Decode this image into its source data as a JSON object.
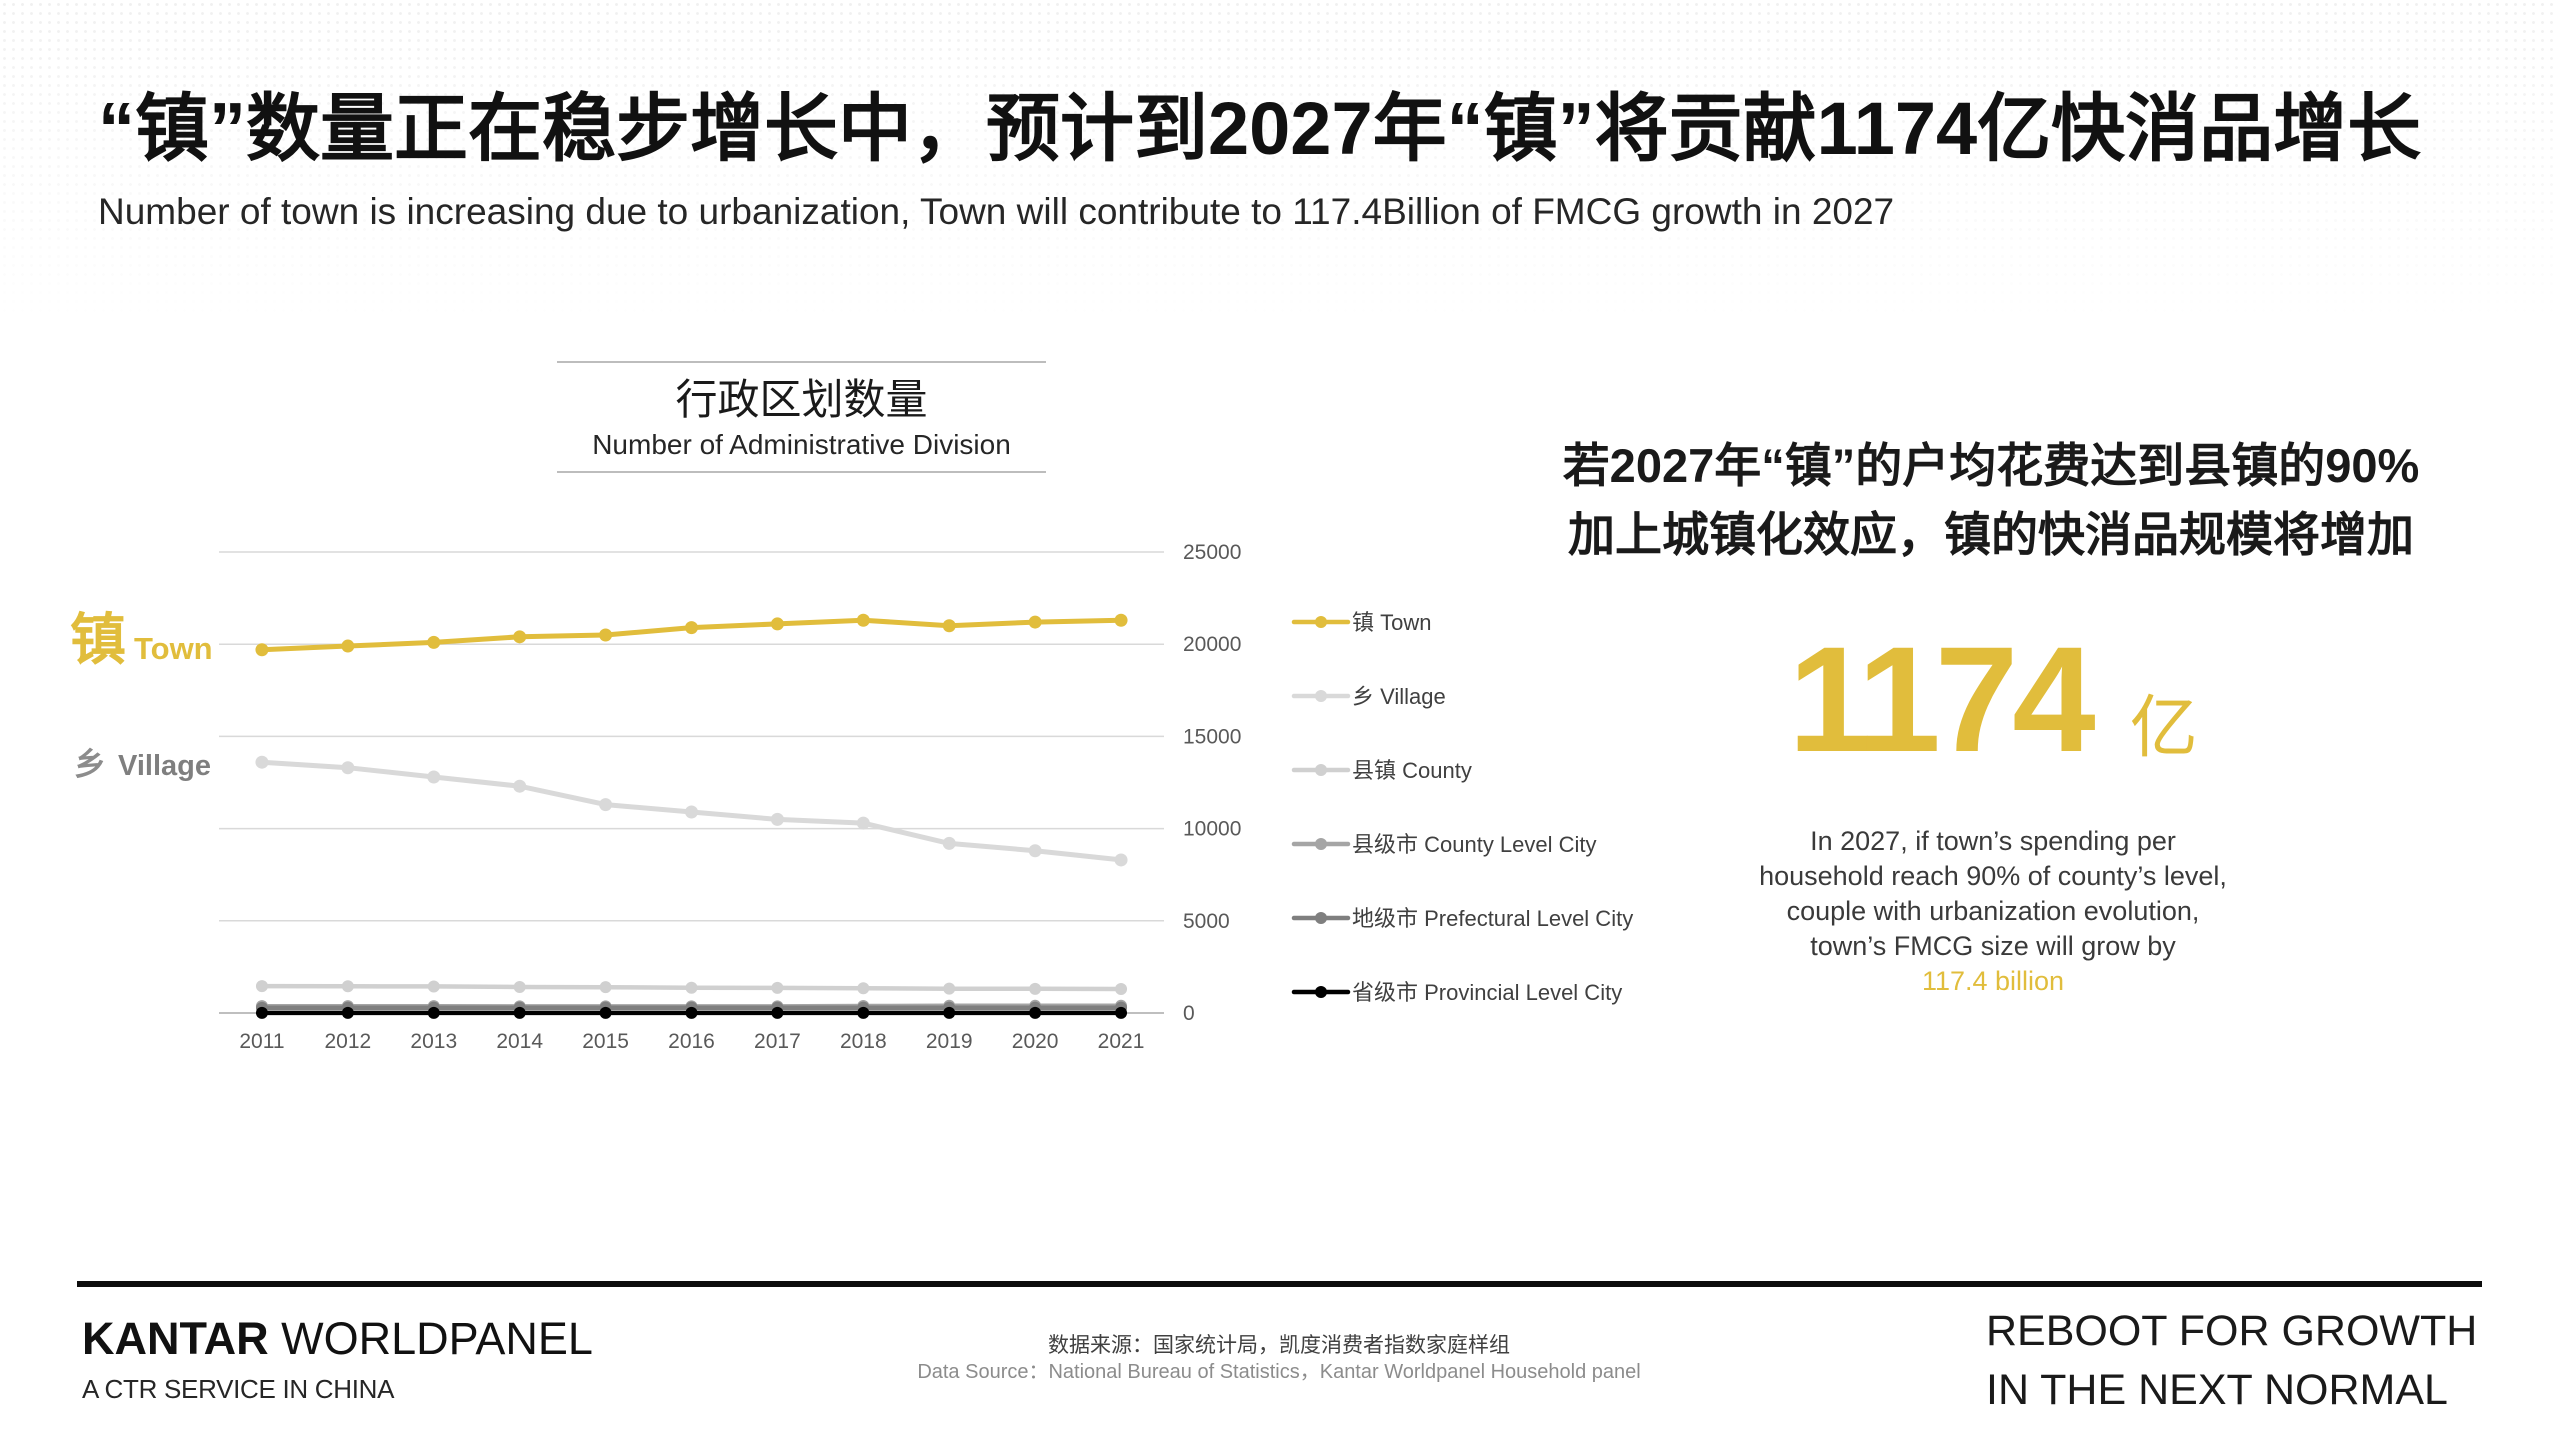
{
  "slide": {
    "title": "“镇”数量正在稳步增长中，预计到2027年“镇”将贡献1174亿快消品增长",
    "subtitle": "Number of town is increasing due to urbanization, Town will contribute to 117.4Billion of FMCG growth in 2027"
  },
  "chart_data": {
    "type": "line",
    "title": "行政区划数量",
    "subtitle": "Number of Administrative Division",
    "categories": [
      "2011",
      "2012",
      "2013",
      "2014",
      "2015",
      "2016",
      "2017",
      "2018",
      "2019",
      "2020",
      "2021"
    ],
    "ylim": [
      0,
      25000
    ],
    "yticks": [
      0,
      5000,
      10000,
      15000,
      20000,
      25000
    ],
    "y_axis_side": "right",
    "grid": true,
    "legend_position": "right",
    "series": [
      {
        "name": "镇 Town",
        "color": "#E1BD3C",
        "values": [
          19700,
          19900,
          20100,
          20400,
          20500,
          20900,
          21100,
          21300,
          21000,
          21200,
          21300
        ]
      },
      {
        "name": "乡 Village",
        "color": "#D9D9D9",
        "values": [
          13600,
          13300,
          12800,
          12300,
          11300,
          10900,
          10500,
          10300,
          9200,
          8800,
          8300
        ]
      },
      {
        "name": "县镇 County",
        "color": "#D0D0D0",
        "values": [
          1460,
          1450,
          1440,
          1410,
          1400,
          1370,
          1360,
          1340,
          1320,
          1310,
          1300
        ]
      },
      {
        "name": "县级市 County Level City",
        "color": "#A5A5A5",
        "values": [
          370,
          370,
          370,
          360,
          360,
          360,
          360,
          380,
          390,
          390,
          390
        ]
      },
      {
        "name": "地级市 Prefectural Level City",
        "color": "#7F7F7F",
        "values": [
          280,
          290,
          290,
          290,
          290,
          290,
          290,
          290,
          290,
          290,
          290
        ]
      },
      {
        "name": "省级市 Provincial Level City",
        "color": "#000000",
        "values": [
          4,
          4,
          4,
          4,
          4,
          4,
          4,
          4,
          4,
          4,
          4
        ]
      }
    ],
    "annotations": [
      {
        "zh": "镇",
        "en": "Town"
      },
      {
        "zh": "乡",
        "en": "Village"
      }
    ]
  },
  "insight": {
    "headline": [
      "若2027年“镇”的户均花费达到县镇的90%",
      "加上城镇化效应，镇的快消品规模将增加"
    ],
    "big_number": "1174",
    "big_unit": "亿",
    "body_lines": [
      "In 2027, if town’s spending per",
      "household reach 90% of county’s level,",
      "couple with urbanization evolution,",
      "town’s FMCG size will grow by"
    ],
    "highlight": "117.4 billion"
  },
  "footer": {
    "brand_bold": "KANTAR",
    "brand_rest": "WORLDPANEL",
    "tagline": "A CTR SERVICE IN CHINA",
    "source_zh": "数据来源：国家统计局，凯度消费者指数家庭样组",
    "source_en": "Data Source：National Bureau of Statistics，Kantar Worldpanel Household panel",
    "campaign_line1": "REBOOT FOR GROWTH",
    "campaign_line2": "IN THE NEXT NORMAL"
  },
  "colors": {
    "accent_gold": "#E1BD3C",
    "text_dark": "#1A1A1A",
    "rule": "#0D0D0D"
  }
}
